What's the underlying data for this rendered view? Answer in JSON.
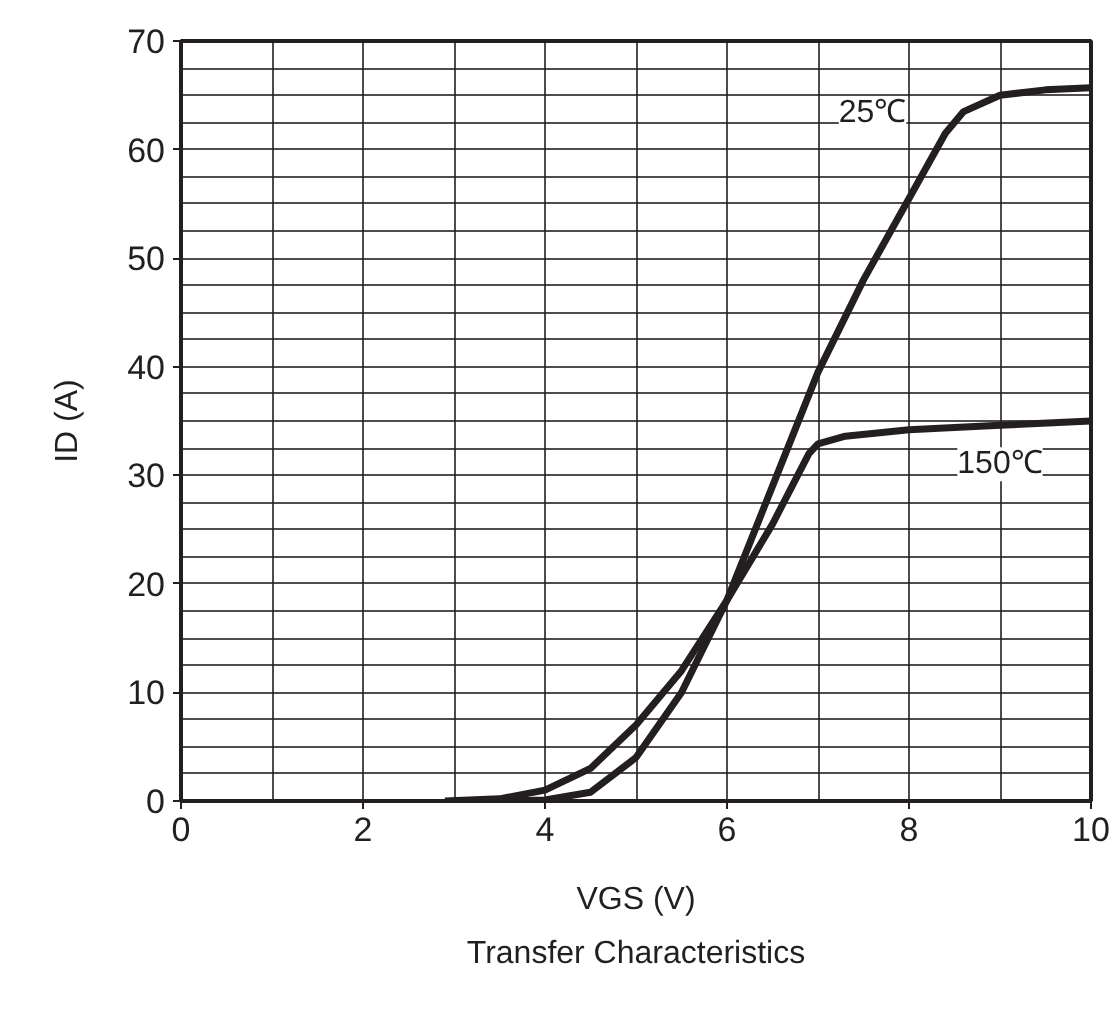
{
  "chart_data": {
    "type": "line",
    "title": "Transfer Characteristics",
    "xlabel": "VGS (V)",
    "ylabel": "ID (A)",
    "xlim": [
      0,
      10
    ],
    "ylim": [
      0,
      70
    ],
    "xticks": [
      0,
      {
        "value": 1,
        "label": null
      },
      2,
      {
        "value": 3,
        "label": null
      },
      4,
      {
        "value": 5,
        "label": null
      },
      6,
      {
        "value": 7,
        "label": null
      },
      8,
      {
        "value": 9,
        "label": null
      },
      10
    ],
    "yticks": [
      0,
      {
        "value": 2.5,
        "label": null
      },
      {
        "value": 5,
        "label": null
      },
      {
        "value": 7.5,
        "label": null
      },
      10,
      {
        "value": 12.5,
        "label": null
      },
      {
        "value": 15,
        "label": null
      },
      {
        "value": 17.5,
        "label": null
      },
      20,
      {
        "value": 22.5,
        "label": null
      },
      {
        "value": 25,
        "label": null
      },
      {
        "value": 27.5,
        "label": null
      },
      30,
      {
        "value": 32.5,
        "label": null
      },
      {
        "value": 35,
        "label": null
      },
      {
        "value": 37.5,
        "label": null
      },
      40,
      {
        "value": 42.5,
        "label": null
      },
      {
        "value": 45,
        "label": null
      },
      {
        "value": 47.5,
        "label": null
      },
      50,
      {
        "value": 52.5,
        "label": null
      },
      {
        "value": 55,
        "label": null
      },
      {
        "value": 57.5,
        "label": null
      },
      60,
      {
        "value": 62.5,
        "label": null
      },
      {
        "value": 65,
        "label": null
      },
      {
        "value": 67.5,
        "label": null
      },
      70
    ],
    "grid": true,
    "marker": "none",
    "line_style": "solid",
    "series": [
      {
        "color": "#231f20",
        "x": [
          3.6,
          4,
          4.5,
          5,
          5.5,
          6,
          6.5,
          7,
          7.5,
          8,
          8.4,
          8.6,
          9,
          9.5,
          10
        ],
        "values": [
          0,
          0.1,
          0.8,
          4,
          10,
          18.5,
          29,
          39.5,
          48,
          55.5,
          61.5,
          63.5,
          65,
          65.5,
          65.7
        ]
      },
      {
        "color": "#231f20",
        "x": [
          2.9,
          3.5,
          4,
          4.5,
          5,
          5.5,
          6,
          6.5,
          6.9,
          7,
          7.3,
          8,
          9,
          10
        ],
        "values": [
          0,
          0.2,
          1,
          3,
          7,
          12,
          18.5,
          25.5,
          32,
          32.9,
          33.6,
          34.2,
          34.6,
          35
        ]
      }
    ],
    "annotations": [
      "25℃",
      "150℃"
    ]
  }
}
